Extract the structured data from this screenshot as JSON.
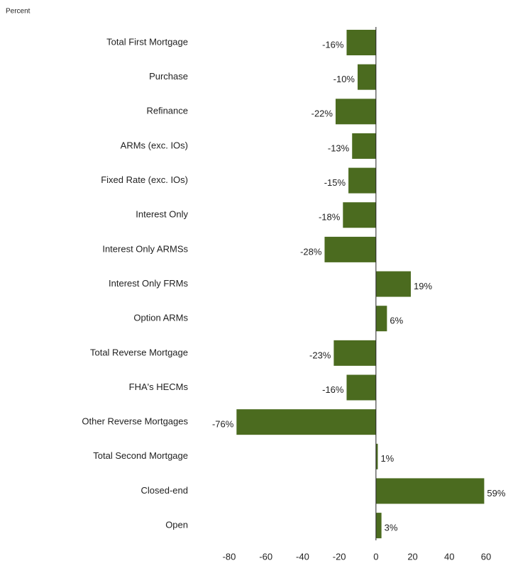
{
  "chart_data": {
    "type": "barh",
    "axis_label": "Percent",
    "categories": [
      "Total First Mortgage",
      "Purchase",
      "Refinance",
      "ARMs (exc. IOs)",
      "Fixed Rate (exc. IOs)",
      "Interest Only",
      "Interest Only ARMSs",
      "Interest Only FRMs",
      "Option ARMs",
      "Total Reverse Mortgage",
      "FHA's HECMs",
      "Other Reverse Mortgages",
      "Total Second Mortgage",
      "Closed-end",
      "Open"
    ],
    "values": [
      -16,
      -10,
      -22,
      -13,
      -15,
      -18,
      -28,
      19,
      6,
      -23,
      -16,
      -76,
      1,
      59,
      3
    ],
    "value_labels": [
      "-16%",
      "-10%",
      "-22%",
      "-13%",
      "-15%",
      "-18%",
      "-28%",
      "19%",
      "6%",
      "-23%",
      "-16%",
      "-76%",
      "1%",
      "59%",
      "3%"
    ],
    "color": "#4b6b1f",
    "xlim": [
      -80,
      60
    ],
    "xticks": [
      -80,
      -60,
      -40,
      -20,
      0,
      20,
      40,
      60
    ]
  }
}
